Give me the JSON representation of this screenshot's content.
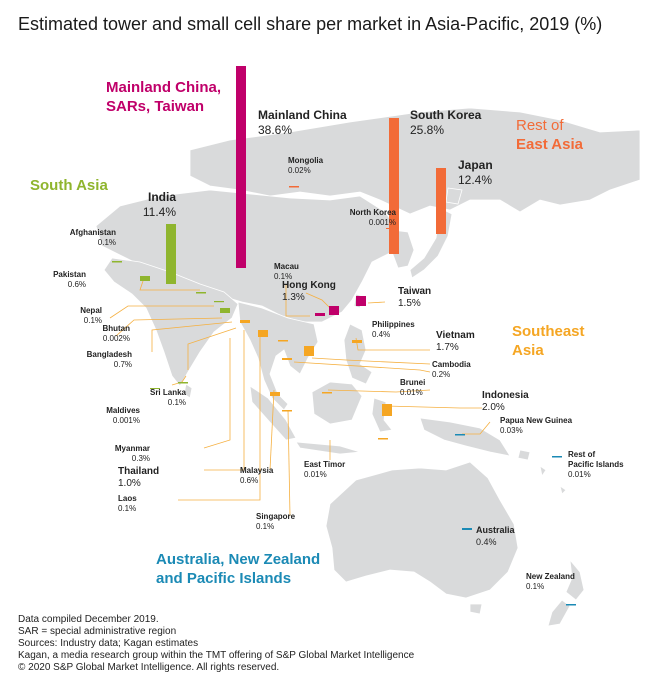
{
  "title": "Estimated tower and small cell share per market in Asia-Pacific, 2019 (%)",
  "colors": {
    "mainland_china_sars_taiwan": "#c0006a",
    "rest_of_east_asia": "#f26b38",
    "south_asia": "#8fb52e",
    "southeast_asia": "#f5a623",
    "australia_nz_pacific": "#1b8ab5",
    "land": "#d9dadb",
    "leader": "#f5b041"
  },
  "regions": {
    "china_sars_taiwan": [
      "Mainland China,",
      "SARs, Taiwan"
    ],
    "rest_east_asia": [
      "Rest of",
      "East Asia"
    ],
    "south_asia": "South Asia",
    "southeast_asia": [
      "Southeast",
      "Asia"
    ],
    "australia": [
      "Australia, New Zealand",
      "and Pacific Islands"
    ]
  },
  "markets": {
    "mainland_china": {
      "name": "Mainland China",
      "value": "38.6%",
      "share": 38.6
    },
    "south_korea": {
      "name": "South Korea",
      "value": "25.8%",
      "share": 25.8
    },
    "japan": {
      "name": "Japan",
      "value": "12.4%",
      "share": 12.4
    },
    "india": {
      "name": "India",
      "value": "11.4%",
      "share": 11.4
    },
    "mongolia": {
      "name": "Mongolia",
      "value": "0.02%",
      "share": 0.02
    },
    "north_korea": {
      "name": "North Korea",
      "value": "0.001%",
      "share": 0.001
    },
    "afghanistan": {
      "name": "Afghanistan",
      "value": "0.1%",
      "share": 0.1
    },
    "pakistan": {
      "name": "Pakistan",
      "value": "0.6%",
      "share": 0.6
    },
    "nepal": {
      "name": "Nepal",
      "value": "0.1%",
      "share": 0.1
    },
    "bhutan": {
      "name": "Bhutan",
      "value": "0.002%",
      "share": 0.002
    },
    "bangladesh": {
      "name": "Bangladesh",
      "value": "0.7%",
      "share": 0.7
    },
    "sri_lanka": {
      "name": "Sri Lanka",
      "value": "0.1%",
      "share": 0.1
    },
    "maldives": {
      "name": "Maldives",
      "value": "0.001%",
      "share": 0.001
    },
    "macau": {
      "name": "Macau",
      "value": "0.1%",
      "share": 0.1
    },
    "hong_kong": {
      "name": "Hong Kong",
      "value": "1.3%",
      "share": 1.3
    },
    "taiwan": {
      "name": "Taiwan",
      "value": "1.5%",
      "share": 1.5
    },
    "philippines": {
      "name": "Philippines",
      "value": "0.4%",
      "share": 0.4
    },
    "vietnam": {
      "name": "Vietnam",
      "value": "1.7%",
      "share": 1.7
    },
    "cambodia": {
      "name": "Cambodia",
      "value": "0.2%",
      "share": 0.2
    },
    "brunei": {
      "name": "Brunei",
      "value": "0.01%",
      "share": 0.01
    },
    "indonesia": {
      "name": "Indonesia",
      "value": "2.0%",
      "share": 2.0
    },
    "papua_new_guinea": {
      "name": "Papua New Guinea",
      "value": "0.03%",
      "share": 0.03
    },
    "rest_pacific": {
      "name": [
        "Rest of",
        "Pacific Islands"
      ],
      "value": "0.01%",
      "share": 0.01
    },
    "myanmar": {
      "name": "Myanmar",
      "value": "0.3%",
      "share": 0.3
    },
    "thailand": {
      "name": "Thailand",
      "value": "1.0%",
      "share": 1.0
    },
    "laos": {
      "name": "Laos",
      "value": "0.1%",
      "share": 0.1
    },
    "malaysia": {
      "name": "Malaysia",
      "value": "0.6%",
      "share": 0.6
    },
    "east_timor": {
      "name": "East Timor",
      "value": "0.01%",
      "share": 0.01
    },
    "singapore": {
      "name": "Singapore",
      "value": "0.1%",
      "share": 0.1
    },
    "australia": {
      "name": "Australia",
      "value": "0.4%",
      "share": 0.4
    },
    "new_zealand": {
      "name": "New Zealand",
      "value": "0.1%",
      "share": 0.1
    }
  },
  "footer": [
    "Data compiled December 2019.",
    "SAR = special administrative region",
    "Sources: Industry data; Kagan estimates",
    "Kagan, a media research group within the TMT offering of S&P Global Market Intelligence",
    "© 2020 S&P Global Market Intelligence. All rights reserved."
  ]
}
